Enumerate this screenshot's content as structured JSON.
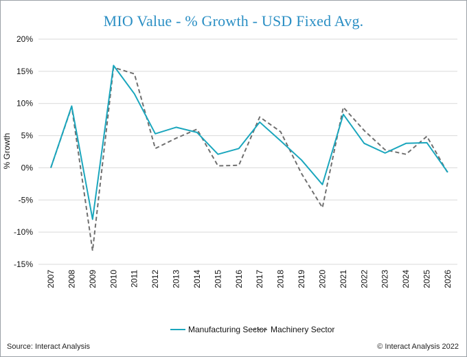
{
  "title": "MIO Value - % Growth - USD Fixed Avg.",
  "footer": {
    "source": "Source: Interact Analysis",
    "copyright": "© Interact Analysis 2022"
  },
  "chart_data": {
    "type": "line",
    "title": "MIO Value - % Growth - USD Fixed Avg.",
    "xlabel": "",
    "ylabel": "% Growth",
    "ylim": [
      -15,
      20
    ],
    "ytick_values": [
      -15,
      -10,
      -5,
      0,
      5,
      10,
      15,
      20
    ],
    "ytick_labels": [
      "-15%",
      "-10%",
      "-5%",
      "0%",
      "5%",
      "10%",
      "15%",
      "20%"
    ],
    "grid": true,
    "legend_position": "bottom",
    "categories": [
      "2007",
      "2008",
      "2009",
      "2010",
      "2011",
      "2012",
      "2013",
      "2014",
      "2015",
      "2016",
      "2017",
      "2018",
      "2019",
      "2020",
      "2021",
      "2022",
      "2023",
      "2024",
      "2025",
      "2026"
    ],
    "series": [
      {
        "name": "Manufacturing Sector",
        "color": "#1aa6bd",
        "style": "solid",
        "values": [
          0,
          9.6,
          -8.0,
          15.9,
          11.5,
          5.3,
          6.3,
          5.5,
          2.1,
          3.0,
          7.1,
          4.2,
          1.2,
          -2.6,
          8.3,
          3.8,
          2.3,
          3.8,
          3.9,
          -0.7
        ]
      },
      {
        "name": "Machinery Sector",
        "color": "#6f6f6f",
        "style": "dashed",
        "values": [
          0,
          9.5,
          -12.9,
          15.6,
          14.6,
          3.0,
          4.6,
          6.0,
          0.3,
          0.4,
          7.9,
          5.6,
          -0.9,
          -6.2,
          9.4,
          5.8,
          2.8,
          2.1,
          4.9,
          -0.8
        ]
      }
    ]
  }
}
